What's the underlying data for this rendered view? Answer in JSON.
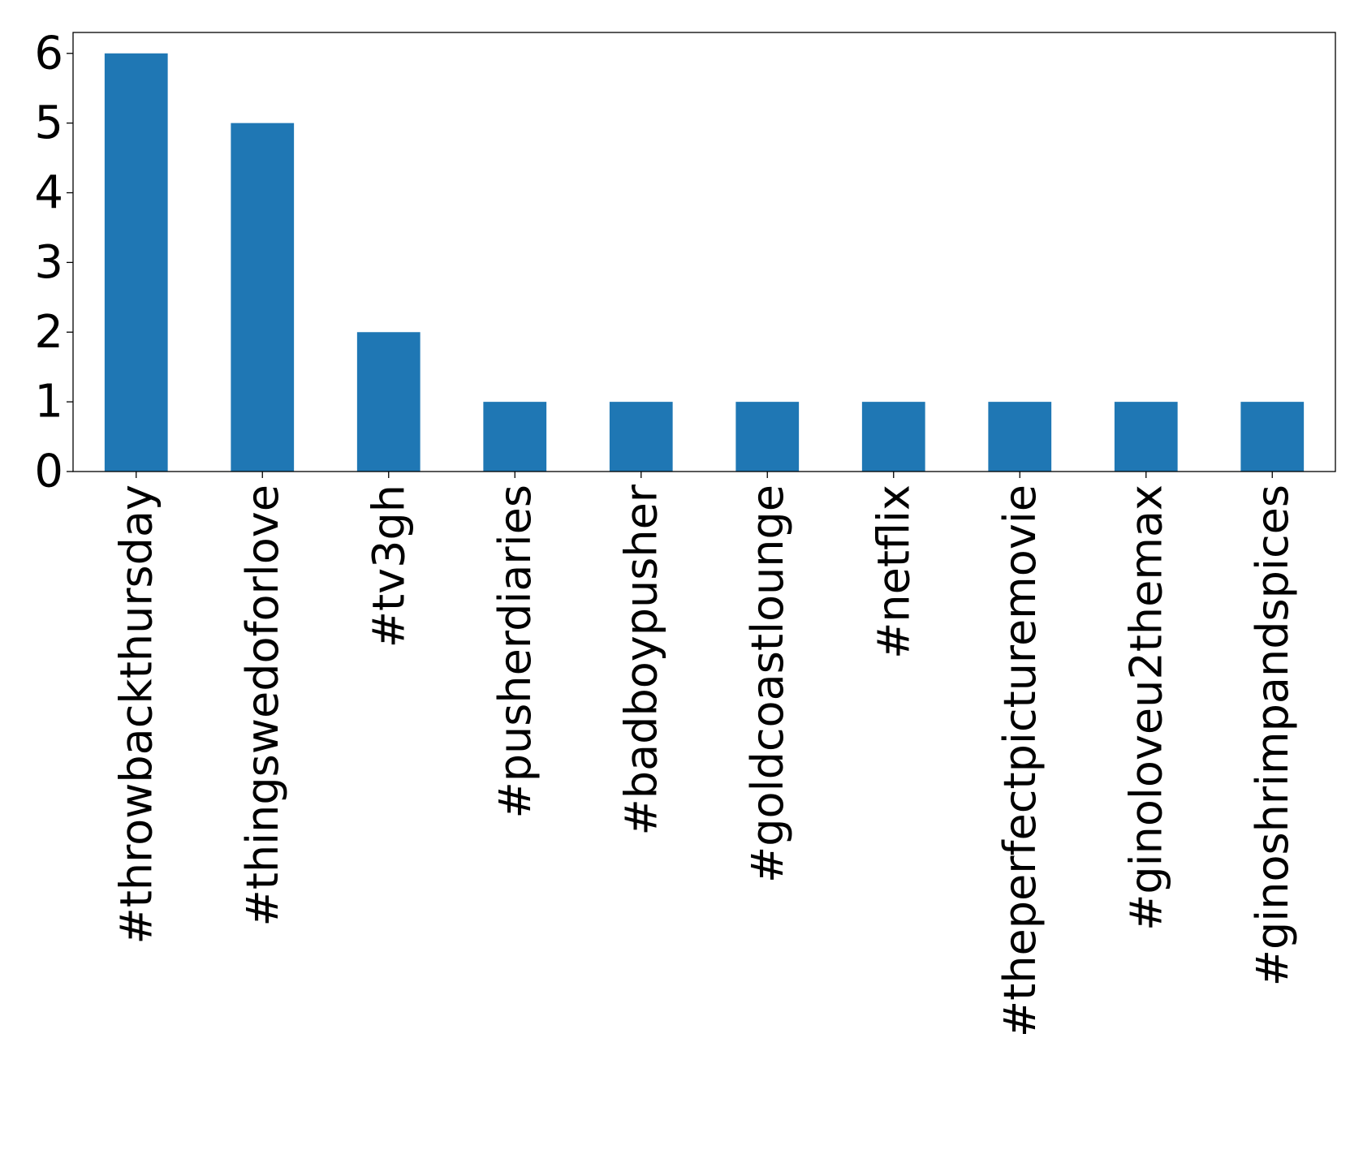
{
  "chart_data": {
    "type": "bar",
    "categories": [
      "#throwbackthursday",
      "#thingswedoforlove",
      "#tv3gh",
      "#pusherdiaries",
      "#badboypusher",
      "#goldcoastlounge",
      "#netflix",
      "#theperfectpicturemovie",
      "#ginoloveu2themax",
      "#ginoshrimpandspices"
    ],
    "values": [
      6,
      5,
      2,
      1,
      1,
      1,
      1,
      1,
      1,
      1
    ],
    "title": "",
    "xlabel": "",
    "ylabel": "",
    "ylim": [
      0,
      6.3
    ],
    "yticks": [
      0,
      1,
      2,
      3,
      4,
      5,
      6
    ],
    "bar_color": "#1f77b4",
    "grid": false,
    "legend": "none"
  }
}
